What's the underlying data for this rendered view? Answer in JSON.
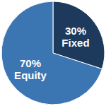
{
  "chart_data": {
    "type": "pie",
    "categories": [
      "Fixed",
      "Equity"
    ],
    "values": [
      30,
      70
    ],
    "value_labels": [
      "30%",
      "70%"
    ],
    "colors": [
      "#1d3a5c",
      "#3b76b2"
    ],
    "data_labels": true
  }
}
